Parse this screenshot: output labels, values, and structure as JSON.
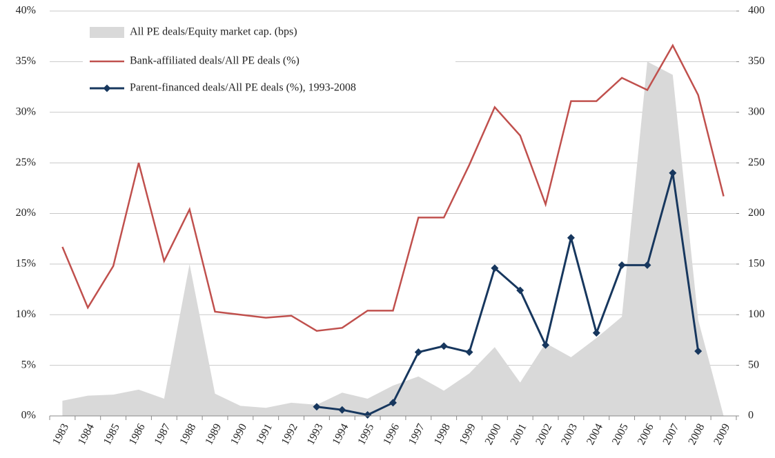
{
  "chart_data": {
    "type": "line",
    "categories": [
      "1983",
      "1984",
      "1985",
      "1986",
      "1987",
      "1988",
      "1989",
      "1990",
      "1991",
      "1992",
      "1993",
      "1994",
      "1995",
      "1996",
      "1997",
      "1998",
      "1999",
      "2000",
      "2001",
      "2002",
      "2003",
      "2004",
      "2005",
      "2006",
      "2007",
      "2008",
      "2009"
    ],
    "series": [
      {
        "name": "All PE deals/Equity market cap. (bps)",
        "type": "area",
        "axis": "y2",
        "color": "#d9d9d9",
        "values": [
          15,
          20,
          21,
          26,
          17,
          150,
          22,
          10,
          8,
          13,
          11,
          23,
          17,
          30,
          39,
          25,
          42,
          68,
          33,
          72,
          58,
          77,
          98,
          350,
          337,
          95,
          0
        ]
      },
      {
        "name": "Bank-affiliated deals/All PE deals (%)",
        "type": "line",
        "color": "#c0504d",
        "values": [
          16.7,
          10.7,
          14.8,
          25.0,
          15.3,
          20.4,
          10.3,
          10.0,
          9.7,
          9.9,
          8.4,
          8.7,
          10.4,
          10.4,
          19.6,
          19.6,
          24.8,
          30.5,
          27.7,
          20.9,
          31.1,
          31.1,
          33.4,
          32.2,
          36.6,
          31.7,
          21.7
        ]
      },
      {
        "name": "Parent-financed deals/All PE deals (%), 1993-2008",
        "type": "line",
        "marker": "diamond",
        "color": "#17375e",
        "values": [
          null,
          null,
          null,
          null,
          null,
          null,
          null,
          null,
          null,
          null,
          0.9,
          0.6,
          0.1,
          1.3,
          6.3,
          6.9,
          6.3,
          14.6,
          12.4,
          7.0,
          17.6,
          8.2,
          14.9,
          14.9,
          24.0,
          6.4,
          null
        ]
      }
    ],
    "ylim": [
      0,
      40
    ],
    "yticks": [
      {
        "value": 0,
        "label": "0%"
      },
      {
        "value": 5,
        "label": "5%"
      },
      {
        "value": 10,
        "label": "10%"
      },
      {
        "value": 15,
        "label": "15%"
      },
      {
        "value": 20,
        "label": "20%"
      },
      {
        "value": 25,
        "label": "25%"
      },
      {
        "value": 30,
        "label": "30%"
      },
      {
        "value": 35,
        "label": "35%"
      },
      {
        "value": 40,
        "label": "40%"
      }
    ],
    "y2lim": [
      0,
      400
    ],
    "y2ticks": [
      0,
      50,
      100,
      150,
      200,
      250,
      300,
      350,
      400
    ],
    "grid": true,
    "legend": "upper-left"
  }
}
